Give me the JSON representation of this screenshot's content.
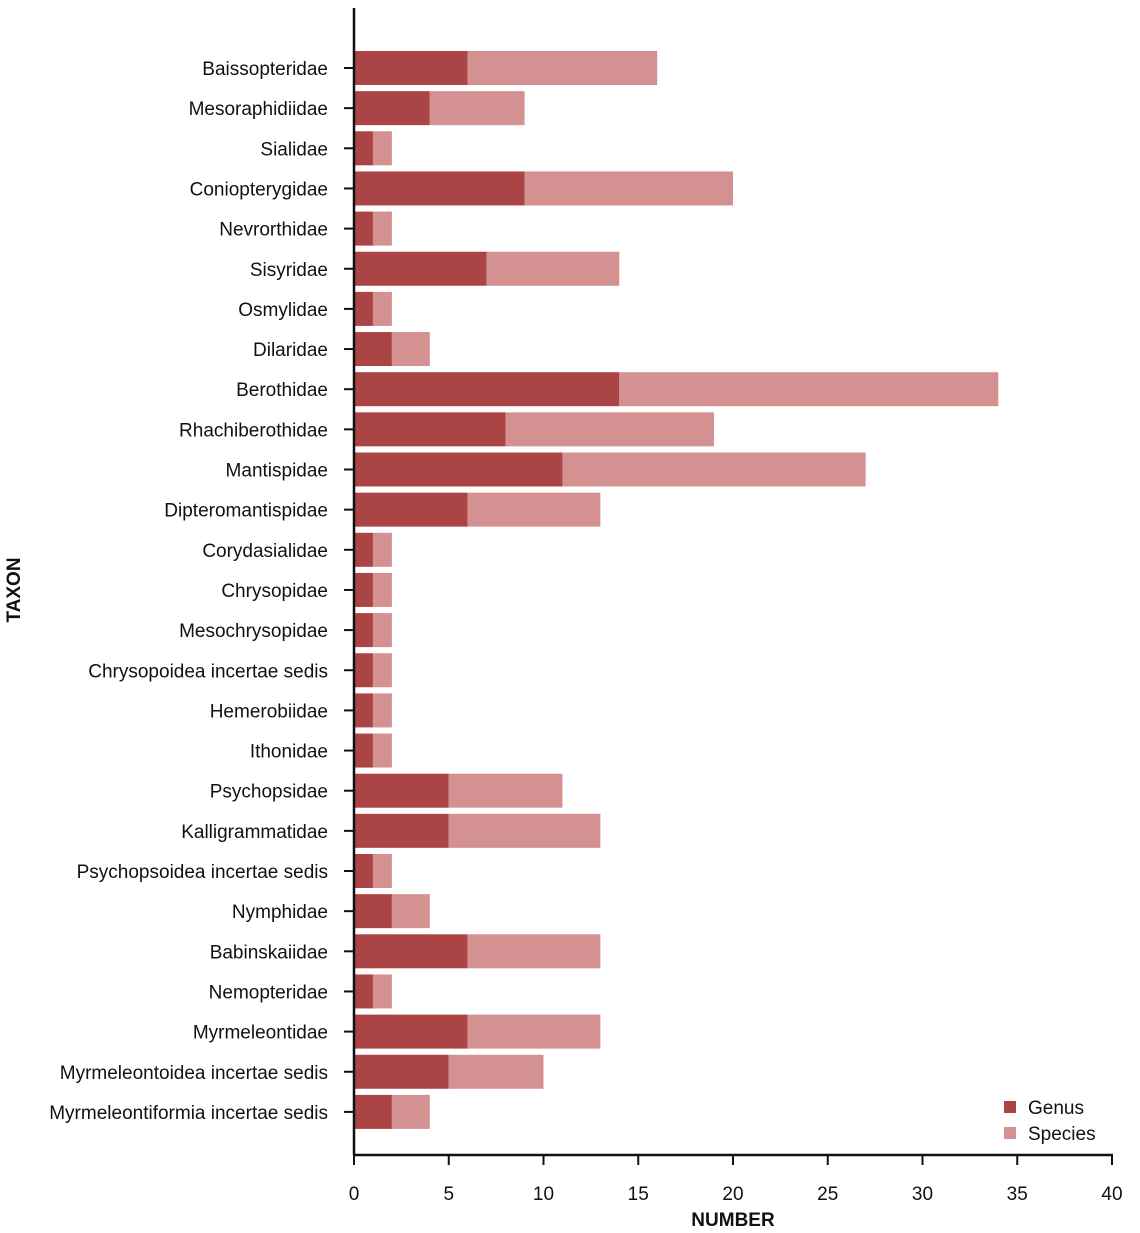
{
  "chart_data": {
    "type": "bar",
    "orientation": "horizontal",
    "stacked": true,
    "xlabel": "NUMBER",
    "ylabel": "TAXON",
    "xlim": [
      0,
      40
    ],
    "xticks": [
      0,
      5,
      10,
      15,
      20,
      25,
      30,
      35,
      40
    ],
    "grid": false,
    "legend_position": "bottom-right",
    "categories": [
      "Baissopteridae",
      "Mesoraphidiidae",
      "Sialidae",
      "Coniopterygidae",
      "Nevrorthidae",
      "Sisyridae",
      "Osmylidae",
      "Dilaridae",
      "Berothidae",
      "Rhachiberothidae",
      "Mantispidae",
      "Dipteromantispidae",
      "Corydasialidae",
      "Chrysopidae",
      "Mesochrysopidae",
      "Chrysopoidea incertae sedis",
      "Hemerobiidae",
      "Ithonidae",
      "Psychopsidae",
      "Kalligrammatidae",
      "Psychopsoidea incertae sedis",
      "Nymphidae",
      "Babinskaiidae",
      "Nemopteridae",
      "Myrmeleontidae",
      "Myrmeleontoidea incertae sedis",
      "Myrmeleontiformia incertae sedis"
    ],
    "series": [
      {
        "name": "Genus",
        "color": "#ab4444",
        "values": [
          6,
          4,
          1,
          9,
          1,
          7,
          1,
          2,
          14,
          8,
          11,
          6,
          1,
          1,
          1,
          1,
          1,
          1,
          5,
          5,
          1,
          2,
          6,
          1,
          6,
          5,
          2
        ]
      },
      {
        "name": "Species",
        "color": "#d39191",
        "values": [
          10,
          5,
          1,
          11,
          1,
          7,
          1,
          2,
          20,
          11,
          16,
          7,
          1,
          1,
          1,
          1,
          1,
          1,
          6,
          8,
          1,
          2,
          7,
          1,
          7,
          5,
          2
        ]
      }
    ]
  }
}
